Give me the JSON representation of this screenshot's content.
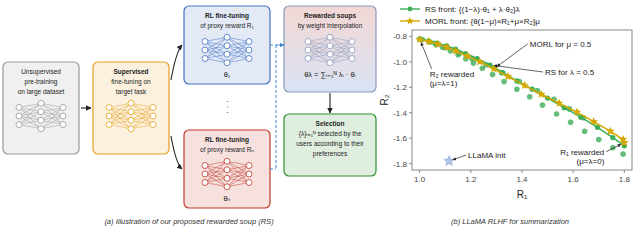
{
  "chart_data": [
    {
      "type": "diagram",
      "title": "(a) Illustration of our proposed rewarded soup (RS)",
      "boxes": [
        {
          "lines": [
            "Unsupervised",
            "pre-training",
            "on large dataset"
          ],
          "color": "#999999",
          "network": true
        },
        {
          "lines": [
            "Supervised",
            "fine-tuning on",
            "target task"
          ],
          "color": "#e6a020",
          "network": true
        },
        {
          "lines": [
            "RL fine-tuning",
            "of proxy reward R₁"
          ],
          "footer": "θ₁",
          "color": "#4472c4",
          "network": true
        },
        {
          "lines": [
            "RL fine-tuning",
            "of proxy reward Rₙ"
          ],
          "footer": "θₙ",
          "color": "#c0392b",
          "network": true
        },
        {
          "lines": [
            "Rewarded soups",
            "by weight interpolation"
          ],
          "footer": "θλ = ∑ᵢ₌₁ᴺ λᵢ · θᵢ",
          "color": "#8899bb",
          "network": true
        },
        {
          "lines": [
            "Selection",
            "{λ}ᵢ₌₁ᴺ selected by the",
            "users according to their",
            "preferences"
          ],
          "color": "#2d8f2d",
          "network": false
        }
      ],
      "annotations": [
        "· · ·"
      ]
    },
    {
      "type": "scatter",
      "title": "(b) LLaMA RLHF for summarization",
      "xlabel": "R₁",
      "ylabel": "R₂",
      "xlim": [
        0.97,
        1.83
      ],
      "ylim": [
        -1.85,
        -0.75
      ],
      "xticks": [
        {
          "value": 1,
          "label": "1.0"
        },
        1.2,
        1.4,
        1.6,
        1.8
      ],
      "yticks": [
        -1.8,
        -1.6,
        -1.4,
        -1.2,
        {
          "value": -1,
          "label": "-1.0"
        },
        -0.8
      ],
      "grid": false,
      "legend": "top",
      "series": [
        {
          "type": "scatter",
          "marker": "circle",
          "color": "#3dae57",
          "x": [
            1.01,
            1.04,
            1.065,
            1.09,
            1.12,
            1.15,
            1.18,
            1.21,
            1.245,
            1.285,
            1.33,
            1.38,
            1.43,
            1.48,
            1.535,
            1.59,
            1.645,
            1.7,
            1.755,
            1.795,
            1.06,
            1.1,
            1.155,
            1.205,
            1.26,
            1.32,
            1.39,
            1.46,
            1.525,
            1.585,
            1.64
          ],
          "values": [
            -0.825,
            -0.845,
            -0.865,
            -0.885,
            -0.915,
            -0.945,
            -0.975,
            -1.01,
            -1.05,
            -1.1,
            -1.155,
            -1.215,
            -1.275,
            -1.34,
            -1.41,
            -1.475,
            -1.545,
            -1.61,
            -1.675,
            -1.725,
            -0.855,
            -0.89,
            -0.935,
            -0.975,
            -1.025,
            -1.085,
            -1.155,
            -1.225,
            -1.295,
            -1.37,
            -1.44
          ]
        },
        {
          "name": "RS front: {(1−λ)·θ₁ + λ·θ₂}λ",
          "type": "line",
          "marker": "circle",
          "color": "#3dae57",
          "x": [
            1.0,
            1.035,
            1.07,
            1.105,
            1.14,
            1.18,
            1.225,
            1.275,
            1.325,
            1.38,
            1.44,
            1.5,
            1.565,
            1.63,
            1.695,
            1.755,
            1.8
          ],
          "values": [
            -0.82,
            -0.835,
            -0.855,
            -0.875,
            -0.9,
            -0.935,
            -0.975,
            -1.025,
            -1.085,
            -1.15,
            -1.215,
            -1.285,
            -1.36,
            -1.435,
            -1.515,
            -1.595,
            -1.66
          ]
        },
        {
          "name": "MORL front: {θ(1−μ)×R₁+μ×R₂}μ",
          "type": "line",
          "marker": "star",
          "color": "#d4a800",
          "x": [
            1.0,
            1.035,
            1.07,
            1.105,
            1.14,
            1.185,
            1.235,
            1.29,
            1.345,
            1.41,
            1.475,
            1.545,
            1.615,
            1.68,
            1.745,
            1.795,
            1.8
          ],
          "values": [
            -0.825,
            -0.84,
            -0.86,
            -0.885,
            -0.915,
            -0.955,
            -1.0,
            -1.055,
            -1.115,
            -1.185,
            -1.255,
            -1.325,
            -1.395,
            -1.47,
            -1.545,
            -1.61,
            -1.635
          ]
        },
        {
          "type": "scatter",
          "marker": "star",
          "color": "#aec7e8",
          "x": [
            1.115
          ],
          "values": [
            -1.78
          ]
        }
      ],
      "annotations": [
        {
          "text": "R₂ rewarded\n(μ=λ=1)",
          "x": 1.0,
          "y": -0.82
        },
        {
          "text": "MORL for μ = 0.5",
          "x": 1.29,
          "y": -1.055
        },
        {
          "text": "RS for λ = 0.5",
          "x": 1.275,
          "y": -1.025
        },
        {
          "text": "R₁ rewarded\n(μ=λ=0)",
          "x": 1.8,
          "y": -1.635
        },
        {
          "text": "LLaMA init",
          "x": 1.115,
          "y": -1.78
        }
      ]
    }
  ]
}
